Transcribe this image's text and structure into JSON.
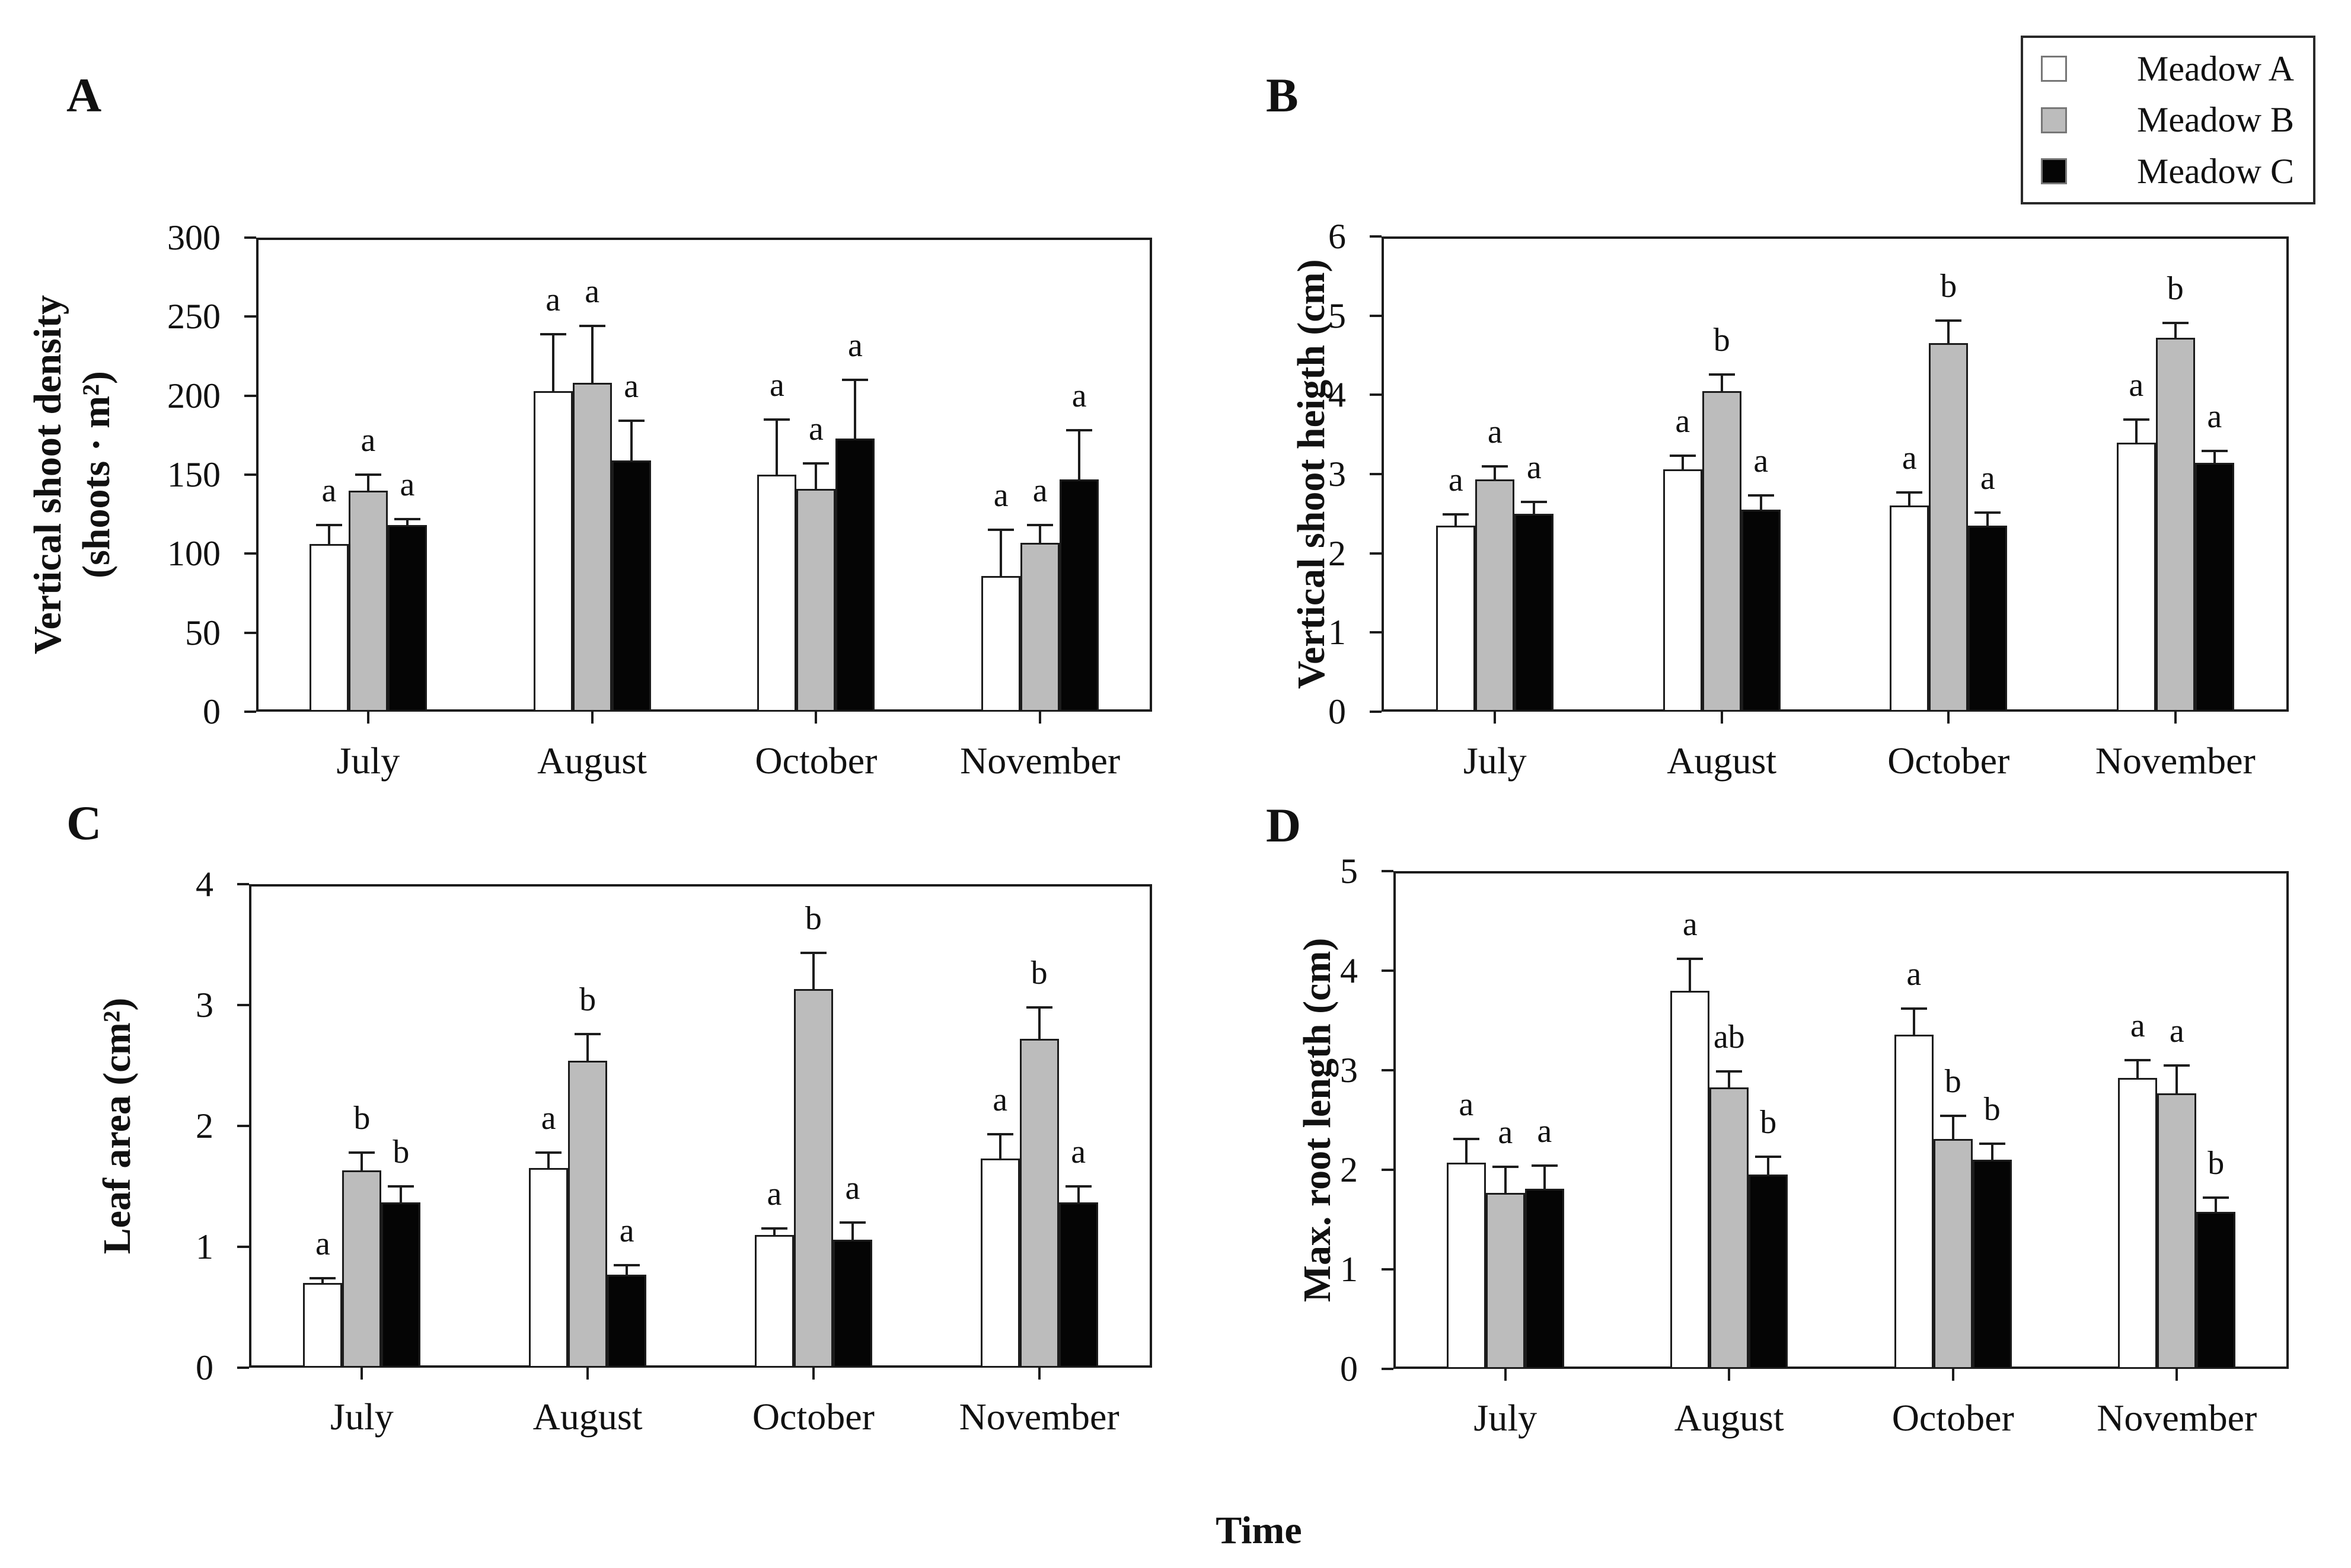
{
  "figure": {
    "xlabel": "Time",
    "background": "#ffffff",
    "axis_color": "#1c1c1c",
    "legend": {
      "items": [
        {
          "label": "Meadow A",
          "color": "#ffffff"
        },
        {
          "label": "Meadow B",
          "color": "#bcbcbc"
        },
        {
          "label": "Meadow C",
          "color": "#050505"
        }
      ]
    }
  },
  "chart_data": [
    {
      "type": "bar",
      "panel": "A",
      "ylabel": "Vertical shoot density (shoots · m²)",
      "ylabel_lines": [
        "Vertical shoot density",
        "(shoots · m²)"
      ],
      "ylim": [
        0,
        300
      ],
      "yticks": [
        0,
        50,
        100,
        150,
        200,
        250,
        300
      ],
      "grid": false,
      "categories": [
        "July",
        "August",
        "October",
        "November"
      ],
      "series": [
        {
          "name": "Meadow A",
          "color": "#ffffff",
          "values": [
            106,
            203,
            150,
            86
          ],
          "errors": [
            12,
            36,
            35,
            29
          ],
          "letters": [
            "a",
            "a",
            "a",
            "a"
          ]
        },
        {
          "name": "Meadow B",
          "color": "#bcbcbc",
          "values": [
            140,
            208,
            141,
            107
          ],
          "errors": [
            10,
            36,
            16,
            11
          ],
          "letters": [
            "a",
            "a",
            "a",
            "a"
          ]
        },
        {
          "name": "Meadow C",
          "color": "#050505",
          "values": [
            118,
            159,
            173,
            147
          ],
          "errors": [
            4,
            25,
            37,
            31
          ],
          "letters": [
            "a",
            "a",
            "a",
            "a"
          ]
        }
      ]
    },
    {
      "type": "bar",
      "panel": "B",
      "ylabel": "Vertical shoot heigth (cm)",
      "ylim": [
        0,
        6
      ],
      "yticks": [
        0,
        1,
        2,
        3,
        4,
        5,
        6
      ],
      "grid": false,
      "legend_position": "top-right-outside",
      "categories": [
        "July",
        "August",
        "October",
        "November"
      ],
      "series": [
        {
          "name": "Meadow A",
          "color": "#ffffff",
          "values": [
            2.35,
            3.06,
            2.6,
            3.4
          ],
          "errors": [
            0.14,
            0.17,
            0.17,
            0.29
          ],
          "letters": [
            "a",
            "a",
            "a",
            "a"
          ]
        },
        {
          "name": "Meadow B",
          "color": "#bcbcbc",
          "values": [
            2.93,
            4.05,
            4.65,
            4.72
          ],
          "errors": [
            0.17,
            0.21,
            0.29,
            0.19
          ],
          "letters": [
            "a",
            "b",
            "b",
            "b"
          ]
        },
        {
          "name": "Meadow C",
          "color": "#050505",
          "values": [
            2.5,
            2.55,
            2.35,
            3.14
          ],
          "errors": [
            0.15,
            0.18,
            0.16,
            0.15
          ],
          "letters": [
            "a",
            "a",
            "a",
            "a"
          ]
        }
      ]
    },
    {
      "type": "bar",
      "panel": "C",
      "ylabel": "Leaf area (cm²)",
      "ylim": [
        0,
        4
      ],
      "yticks": [
        0,
        1,
        2,
        3,
        4
      ],
      "grid": false,
      "categories": [
        "July",
        "August",
        "October",
        "November"
      ],
      "series": [
        {
          "name": "Meadow A",
          "color": "#ffffff",
          "values": [
            0.7,
            1.65,
            1.1,
            1.73
          ],
          "errors": [
            0.04,
            0.13,
            0.05,
            0.2
          ],
          "letters": [
            "a",
            "a",
            "a",
            "a"
          ]
        },
        {
          "name": "Meadow B",
          "color": "#bcbcbc",
          "values": [
            1.63,
            2.54,
            3.13,
            2.72
          ],
          "errors": [
            0.15,
            0.22,
            0.3,
            0.26
          ],
          "letters": [
            "b",
            "b",
            "b",
            "b"
          ]
        },
        {
          "name": "Meadow C",
          "color": "#050505",
          "values": [
            1.37,
            0.77,
            1.06,
            1.37
          ],
          "errors": [
            0.13,
            0.08,
            0.14,
            0.13
          ],
          "letters": [
            "b",
            "a",
            "a",
            "a"
          ]
        }
      ]
    },
    {
      "type": "bar",
      "panel": "D",
      "ylabel": "Max. root length (cm)",
      "ylim": [
        0,
        5
      ],
      "yticks": [
        0,
        1,
        2,
        3,
        4,
        5
      ],
      "grid": false,
      "categories": [
        "July",
        "August",
        "October",
        "November"
      ],
      "series": [
        {
          "name": "Meadow A",
          "color": "#ffffff",
          "values": [
            2.07,
            3.8,
            3.36,
            2.92
          ],
          "errors": [
            0.24,
            0.32,
            0.26,
            0.18
          ],
          "letters": [
            "a",
            "a",
            "a",
            "a"
          ]
        },
        {
          "name": "Meadow B",
          "color": "#bcbcbc",
          "values": [
            1.77,
            2.83,
            2.31,
            2.77
          ],
          "errors": [
            0.26,
            0.16,
            0.23,
            0.28
          ],
          "letters": [
            "a",
            "ab",
            "b",
            "a"
          ]
        },
        {
          "name": "Meadow C",
          "color": "#050505",
          "values": [
            1.81,
            1.95,
            2.1,
            1.58
          ],
          "errors": [
            0.23,
            0.18,
            0.16,
            0.14
          ],
          "letters": [
            "a",
            "b",
            "b",
            "b"
          ]
        }
      ]
    }
  ]
}
